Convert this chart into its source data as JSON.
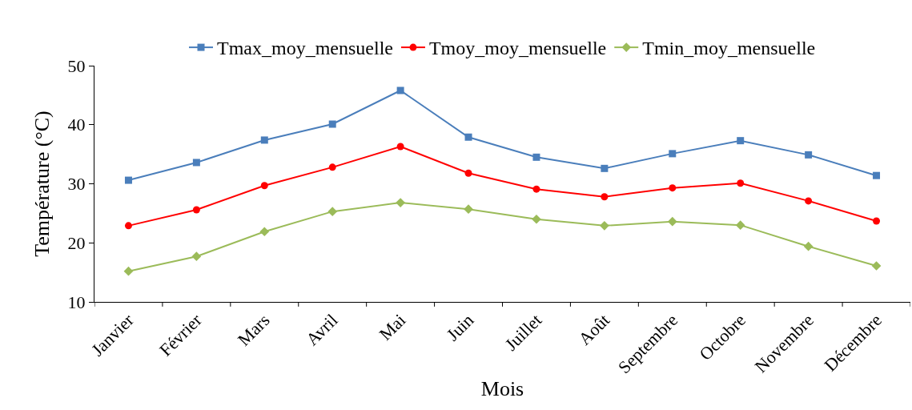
{
  "chart_data": {
    "type": "line",
    "xlabel": "Mois",
    "ylabel": "Température (°C)",
    "categories": [
      "Janvier",
      "Février",
      "Mars",
      "Avril",
      "Mai",
      "Juin",
      "Juillet",
      "Août",
      "Septembre",
      "Octobre",
      "Novembre",
      "Décembre"
    ],
    "series": [
      {
        "name": "Tmax_moy_mensuelle",
        "color": "#4a7ebb",
        "marker": "square",
        "values": [
          30.6,
          33.6,
          37.4,
          40.1,
          45.8,
          37.9,
          34.5,
          32.6,
          35.1,
          37.3,
          34.9,
          31.4
        ]
      },
      {
        "name": "Tmoy_moy_mensuelle",
        "color": "#ff0000",
        "marker": "circle",
        "values": [
          22.9,
          25.6,
          29.7,
          32.8,
          36.3,
          31.8,
          29.1,
          27.8,
          29.3,
          30.1,
          27.1,
          23.7
        ]
      },
      {
        "name": "Tmin_moy_mensuelle",
        "color": "#9bbb59",
        "marker": "diamond",
        "values": [
          15.2,
          17.7,
          21.9,
          25.3,
          26.8,
          25.7,
          24.0,
          22.9,
          23.6,
          23.0,
          19.4,
          16.1
        ]
      }
    ],
    "ylim": [
      10,
      50
    ],
    "yticks": [
      10,
      20,
      30,
      40,
      50
    ],
    "grid": false,
    "legend": "top",
    "line_style": "solid"
  }
}
